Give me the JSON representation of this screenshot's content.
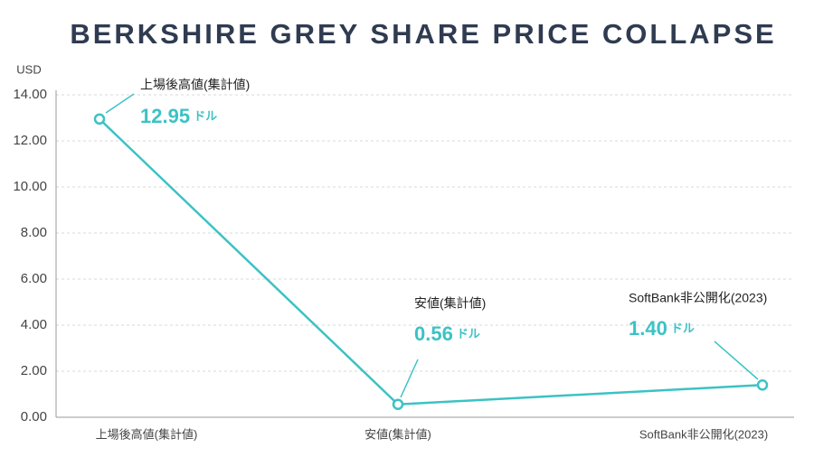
{
  "chart_data": {
    "type": "line",
    "title": "BERKSHIRE GREY SHARE PRICE COLLAPSE",
    "y_label": "USD",
    "categories": [
      "上場後高値(集計値)",
      "安値(集計値)",
      "SoftBank非公開化(2023)"
    ],
    "values": [
      12.95,
      0.56,
      1.4
    ],
    "value_labels": [
      "12.95",
      "0.56",
      "1.40"
    ],
    "value_unit": "ドル",
    "color": "#3cc2c4",
    "ylim": [
      0,
      14
    ],
    "yticks": [
      {
        "value": 0,
        "label": "0.00"
      },
      {
        "value": 2,
        "label": "2.00"
      },
      {
        "value": 4,
        "label": "4.00"
      },
      {
        "value": 6,
        "label": "6.00"
      },
      {
        "value": 8,
        "label": "8.00"
      },
      {
        "value": 10,
        "label": "10.00"
      },
      {
        "value": 12,
        "label": "12.00"
      },
      {
        "value": 14,
        "label": "14.00"
      }
    ],
    "grid": true
  }
}
